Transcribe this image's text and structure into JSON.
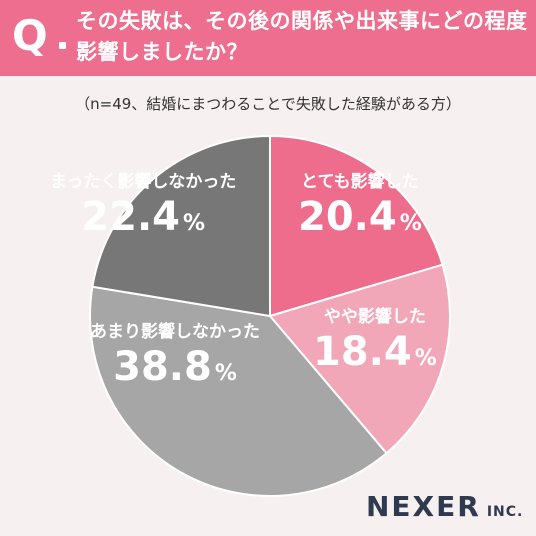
{
  "header": {
    "q_mark": "Q",
    "question": "その失敗は、その後の関係や出来事にどの程度\n影響しましたか？"
  },
  "note": "（n=49、結婚にまつわることで失敗した経験がある方）",
  "brand": {
    "name": "NEXER",
    "suffix": "INC."
  },
  "colors": {
    "header": "#ed6e8e",
    "background": "#f7f0f1",
    "logo": "#2f3a4e"
  },
  "chart_data": {
    "type": "pie",
    "title": "",
    "start": "12 o'clock, clockwise",
    "unit": "%",
    "slices": [
      {
        "label": "とても影響した",
        "value": 20.4,
        "value_text": "20.4",
        "color": "#ee6d8c"
      },
      {
        "label": "やや影響した",
        "value": 18.4,
        "value_text": "18.4",
        "color": "#f2a7b8"
      },
      {
        "label": "あまり影響しなかった",
        "value": 38.8,
        "value_text": "38.8",
        "color": "#a6a6a6"
      },
      {
        "label": "まったく影響しなかった",
        "value": 22.4,
        "value_text": "22.4",
        "color": "#777777"
      }
    ]
  }
}
